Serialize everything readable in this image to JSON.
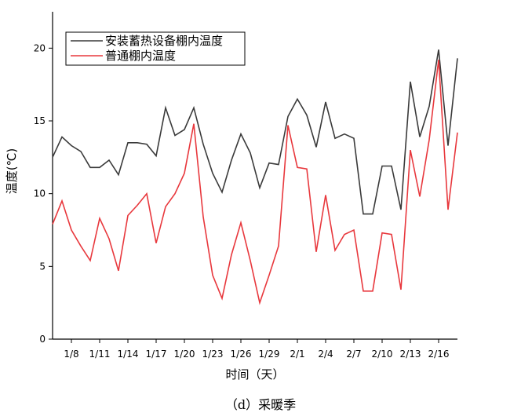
{
  "caption": "（d）采暖季",
  "chart_data": {
    "type": "line",
    "xlabel": "时间（天）",
    "ylabel": "温度(℃)",
    "ylim": [
      0,
      22.5
    ],
    "yticks": [
      0,
      5,
      10,
      15,
      20
    ],
    "xticks": [
      "1/8",
      "1/11",
      "1/14",
      "1/17",
      "1/20",
      "1/23",
      "1/26",
      "1/29",
      "2/1",
      "2/4",
      "2/7",
      "2/10",
      "2/13",
      "2/16"
    ],
    "xtick_index": [
      2,
      5,
      8,
      11,
      14,
      17,
      20,
      23,
      26,
      29,
      32,
      35,
      38,
      41
    ],
    "legend_position": "top-left",
    "grid": false,
    "series": [
      {
        "name": "安装蓄热设备棚内温度",
        "color": "#3a3a3a",
        "values": [
          12.5,
          13.9,
          13.3,
          12.9,
          11.8,
          11.8,
          12.3,
          11.3,
          13.5,
          13.5,
          13.4,
          12.6,
          15.9,
          14.0,
          14.4,
          15.9,
          13.4,
          11.4,
          10.1,
          12.3,
          14.1,
          12.8,
          10.4,
          12.1,
          12.0,
          15.3,
          16.5,
          15.4,
          13.2,
          16.3,
          13.8,
          14.1,
          13.8,
          8.6,
          8.6,
          11.9,
          11.9,
          8.9,
          17.7,
          13.9,
          16.0,
          19.9,
          13.3,
          19.3
        ]
      },
      {
        "name": "普通棚内温度",
        "color": "#e8383d",
        "values": [
          7.9,
          9.5,
          7.5,
          6.4,
          5.4,
          8.3,
          6.9,
          4.7,
          8.5,
          9.2,
          10.0,
          6.6,
          9.1,
          10.0,
          11.4,
          14.8,
          8.4,
          4.4,
          2.8,
          5.8,
          8.0,
          5.4,
          2.5,
          4.4,
          6.4,
          14.7,
          11.8,
          11.7,
          6.0,
          9.9,
          6.1,
          7.2,
          7.5,
          3.3,
          3.3,
          7.3,
          7.2,
          3.4,
          13.0,
          9.8,
          13.7,
          19.2,
          8.9,
          14.2
        ]
      }
    ]
  }
}
